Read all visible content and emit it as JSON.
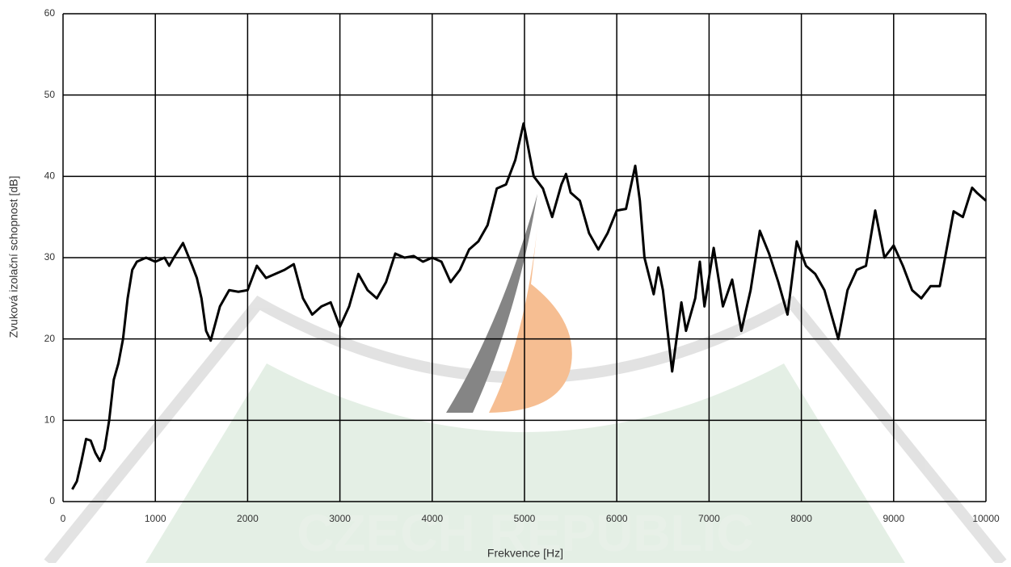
{
  "chart_data": {
    "type": "line",
    "xlabel": "Frekvence [Hz]",
    "ylabel": "Zvuková izolační schopnost [dB]",
    "watermark": "CZECH REPUBLIC",
    "x": [
      100,
      150,
      200,
      250,
      300,
      350,
      400,
      450,
      500,
      550,
      600,
      650,
      700,
      750,
      800,
      900,
      1000,
      1100,
      1150,
      1200,
      1300,
      1400,
      1450,
      1500,
      1550,
      1600,
      1700,
      1800,
      1900,
      2000,
      2100,
      2200,
      2300,
      2400,
      2500,
      2600,
      2700,
      2800,
      2900,
      3000,
      3100,
      3200,
      3300,
      3400,
      3500,
      3600,
      3700,
      3800,
      3900,
      4000,
      4100,
      4200,
      4300,
      4400,
      4500,
      4600,
      4700,
      4800,
      4900,
      4990,
      5100,
      5200,
      5300,
      5400,
      5450,
      5500,
      5600,
      5700,
      5800,
      5900,
      6000,
      6100,
      6200,
      6250,
      6300,
      6400,
      6450,
      6500,
      6600,
      6700,
      6750,
      6850,
      6900,
      6950,
      7050,
      7150,
      7250,
      7350,
      7450,
      7550,
      7650,
      7750,
      7850,
      7950,
      8050,
      8150,
      8250,
      8400,
      8500,
      8600,
      8700,
      8800,
      8900,
      9000,
      9100,
      9200,
      9300,
      9400,
      9500,
      9650,
      9750,
      9850,
      9900,
      10000
    ],
    "series": [
      {
        "name": "Zvuková izolační schopnost",
        "color": "#000000",
        "values": [
          1.5,
          2.5,
          5,
          7.7,
          7.5,
          6,
          5,
          6.5,
          10,
          15,
          17,
          20,
          25,
          28.5,
          29.5,
          30,
          29.5,
          30,
          29,
          30,
          31.8,
          29,
          27.5,
          25,
          21,
          19.8,
          24,
          26,
          25.8,
          26,
          29,
          27.5,
          28,
          28.5,
          29.2,
          25,
          23,
          24,
          24.5,
          21.5,
          24,
          28,
          26,
          25,
          27,
          30.5,
          30,
          30.2,
          29.5,
          30,
          29.5,
          27,
          28.5,
          31,
          32,
          34,
          38.5,
          39,
          42,
          46.5,
          40,
          38.5,
          35,
          39,
          40.3,
          38,
          37,
          33,
          31,
          33,
          35.8,
          36,
          41.3,
          37,
          30,
          25.5,
          28.8,
          26,
          16,
          24.5,
          21,
          25,
          29.5,
          24,
          31.2,
          24,
          27.3,
          21,
          26,
          33.3,
          30.5,
          27,
          23,
          32,
          29,
          28,
          26,
          20,
          26,
          28.5,
          29,
          35.8,
          30,
          31.5,
          29,
          26,
          25,
          26.5,
          26.5,
          35.7,
          35,
          38.6,
          38,
          37
        ]
      }
    ],
    "xlim": [
      0,
      10000
    ],
    "ylim": [
      0,
      60
    ],
    "xticks": [
      0,
      1000,
      2000,
      3000,
      4000,
      5000,
      6000,
      7000,
      8000,
      9000,
      10000
    ],
    "yticks": [
      0,
      10,
      20,
      30,
      40,
      50,
      60
    ],
    "grid": true
  }
}
